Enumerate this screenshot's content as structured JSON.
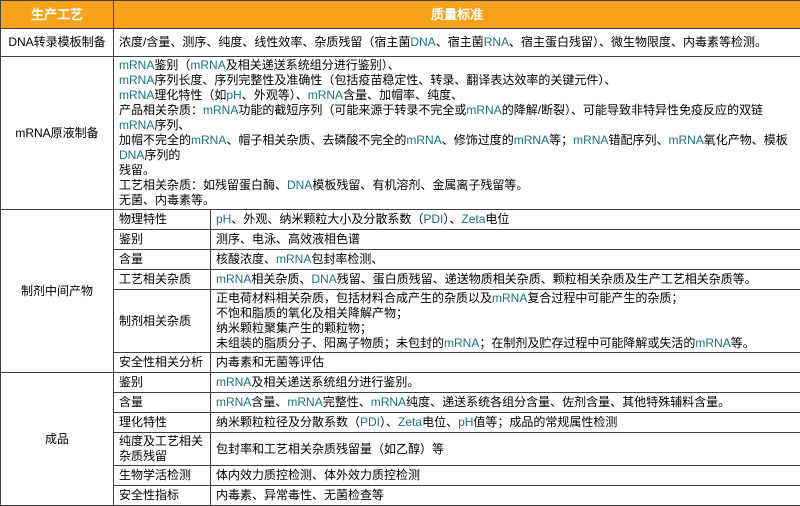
{
  "colors": {
    "header_bg": "#F7A21B",
    "header_text": "#FFFFFF",
    "border": "#404040",
    "latin_text": "#17757C"
  },
  "header": {
    "process": "生产工艺",
    "standard": "质量标准"
  },
  "sections": [
    {
      "process": "DNA转录模板制备",
      "content": "浓度/含量、测序、纯度、线性效率、杂质残留（宿主菌DNA、宿主菌RNA、宿主蛋白残留）、微生物限度、内毒素等检测。"
    },
    {
      "process": "mRNA原液制备",
      "content": "mRNA鉴别（mRNA及相关递送系统组分进行鉴别）、\nmRNA序列长度、序列完整性及准确性（包括疫苗稳定性、转录、翻译表达效率的关键元件）、\nmRNA理化特性（如pH、外观等）、mRNA含量、加帽率、纯度、\n产品相关杂质：mRNA功能的截短序列（可能来源于转录不完全或mRNA的降解/断裂）、可能导致非特异性免疫反应的双链mRNA序列、\n加帽不完全的mRNA、帽子相关杂质、去磷酸不完全的mRNA、修饰过度的mRNA等；mRNA错配序列、mRNA氧化产物、模板DNA序列的\n残留。\n工艺相关杂质：如残留蛋白酶、DNA模板残留、有机溶剂、金属离子残留等。\n无菌、内毒素等。"
    },
    {
      "process": "制剂中间产物",
      "subrows": [
        {
          "label": "物理特性",
          "content": "pH、外观、纳米颗粒大小及分散系数（PDI）、Zeta电位"
        },
        {
          "label": "鉴别",
          "content": "测序、电泳、高效液相色谱"
        },
        {
          "label": "含量",
          "content": "核酸浓度、mRNA包封率检测、"
        },
        {
          "label": "工艺相关杂质",
          "content": "mRNA相关杂质、DNA残留、蛋白质残留、递送物质相关杂质、颗粒相关杂质及生产工艺相关杂质等。"
        },
        {
          "label": "制剂相关杂质",
          "content": "正电荷材料相关杂质，包括材料合成产生的杂质以及mRNA复合过程中可能产生的杂质；\n不饱和脂质的氧化及相关降解产物；\n纳米颗粒聚集产生的颗粒物；\n未组装的脂质分子、阳离子物质；未包封的mRNA；在制剂及贮存过程中可能降解或失活的mRNA等。"
        },
        {
          "label": "安全性相关分析",
          "content": "内毒素和无菌等评估"
        }
      ]
    },
    {
      "process": "成品",
      "subrows": [
        {
          "label": "鉴别",
          "content": "mRNA及相关递送系统组分进行鉴别。"
        },
        {
          "label": "含量",
          "content": "mRNA含量、mRNA完整性、mRNA纯度、递送系统各组分含量、佐剂含量、其他特殊辅料含量。"
        },
        {
          "label": "理化特性",
          "content": "纳米颗粒粒径及分散系数（PDI）、Zeta电位、pH值等；成品的常规属性检测"
        },
        {
          "label": "纯度及工艺相关杂质残留",
          "content": "包封率和工艺相关杂质残留量（如乙醇）等"
        },
        {
          "label": "生物学活检测",
          "content": "体内效力质控检测、体外效力质控检测"
        },
        {
          "label": "安全性指标",
          "content": "内毒素、异常毒性、无菌检查等"
        }
      ]
    }
  ]
}
